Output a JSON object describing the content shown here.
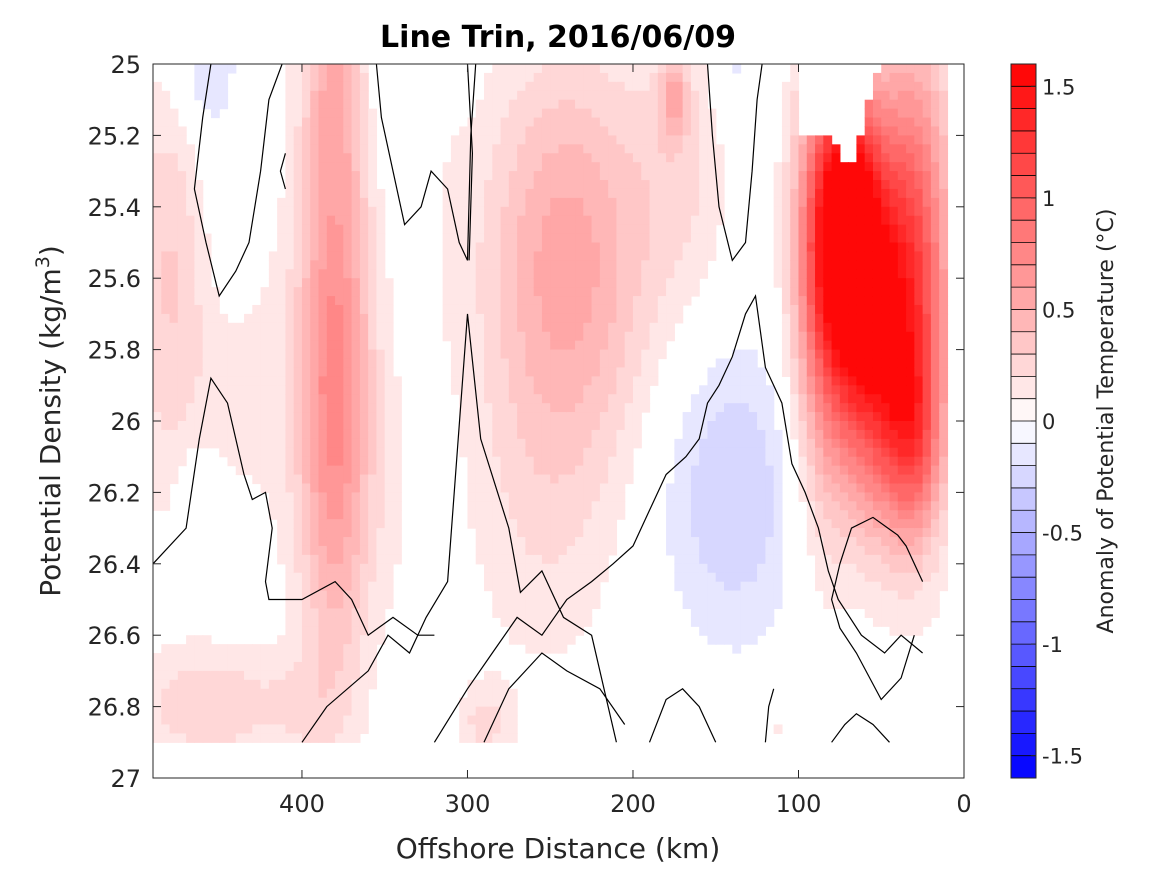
{
  "chart_data": {
    "type": "heatmap",
    "title": "Line Trin, 2016/06/09",
    "xlabel": "Offshore Distance (km)",
    "ylabel": {
      "main": "Potential Density (kg/m",
      "sup": "3",
      "close": ")"
    },
    "xlim": [
      490,
      0
    ],
    "ylim": [
      27,
      25
    ],
    "x_direction": "reversed",
    "y_direction": "reversed",
    "xticks": [
      {
        "value": 400,
        "label": "400"
      },
      {
        "value": 300,
        "label": "300"
      },
      {
        "value": 200,
        "label": "200"
      },
      {
        "value": 100,
        "label": "100"
      },
      {
        "value": 0,
        "label": "0"
      }
    ],
    "yticks": [
      {
        "value": 25,
        "label": "25"
      },
      {
        "value": 25.2,
        "label": "25.2"
      },
      {
        "value": 25.4,
        "label": "25.4"
      },
      {
        "value": 25.6,
        "label": "25.6"
      },
      {
        "value": 25.8,
        "label": "25.8"
      },
      {
        "value": 26,
        "label": "26"
      },
      {
        "value": 26.2,
        "label": "26.2"
      },
      {
        "value": 26.4,
        "label": "26.4"
      },
      {
        "value": 26.6,
        "label": "26.6"
      },
      {
        "value": 26.8,
        "label": "26.8"
      },
      {
        "value": 27,
        "label": "27"
      }
    ],
    "grid": false,
    "colormap": "blue-white-red diverging",
    "color_low": "#0000ff",
    "color_mid": "#ffffff",
    "color_high": "#ff0000",
    "contour_color": "#000000",
    "colorbar": {
      "label": "Anomaly of Potential Temperature (°C)",
      "range": [
        -1.6,
        1.6
      ],
      "levels": 32,
      "ticks": [
        {
          "value": 1.5,
          "label": "1.5"
        },
        {
          "value": 1,
          "label": "1"
        },
        {
          "value": 0.5,
          "label": "0.5"
        },
        {
          "value": 0,
          "label": "0"
        },
        {
          "value": -0.5,
          "label": "-0.5"
        },
        {
          "value": -1,
          "label": "-1"
        },
        {
          "value": -1.5,
          "label": "-1.5"
        }
      ]
    },
    "data_extent": {
      "x": [
        490,
        10
      ],
      "y": [
        25,
        26.9
      ]
    },
    "features": [
      {
        "x": 380,
        "y": 25.9,
        "sx": 16,
        "sy": 0.55,
        "value": 0.75
      },
      {
        "x": 380,
        "y": 25.0,
        "sx": 14,
        "sy": 0.25,
        "value": 0.35
      },
      {
        "x": 240,
        "y": 25.55,
        "sx": 36,
        "sy": 0.4,
        "value": 0.55
      },
      {
        "x": 255,
        "y": 26.3,
        "sx": 35,
        "sy": 0.35,
        "value": 0.15
      },
      {
        "x": 480,
        "y": 25.6,
        "sx": 18,
        "sy": 0.45,
        "value": 0.3
      },
      {
        "x": 430,
        "y": 25.9,
        "sx": 25,
        "sy": 0.35,
        "value": 0.12
      },
      {
        "x": 455,
        "y": 26.8,
        "sx": 35,
        "sy": 0.12,
        "value": 0.28
      },
      {
        "x": 400,
        "y": 26.8,
        "sx": 15,
        "sy": 0.1,
        "value": 0.1
      },
      {
        "x": 290,
        "y": 26.85,
        "sx": 12,
        "sy": 0.08,
        "value": 0.22
      },
      {
        "x": 190,
        "y": 26.85,
        "sx": 25,
        "sy": 0.12,
        "value": 0.08
      },
      {
        "x": 115,
        "y": 26.85,
        "sx": 12,
        "sy": 0.07,
        "value": 0.12
      },
      {
        "x": 170,
        "y": 25.3,
        "sx": 22,
        "sy": 0.3,
        "value": 0.18
      },
      {
        "x": 175,
        "y": 25.1,
        "sx": 6,
        "sy": 0.08,
        "value": 0.4
      },
      {
        "x": 310,
        "y": 25.4,
        "sx": 8,
        "sy": 0.3,
        "value": 0.06
      },
      {
        "x": 345,
        "y": 26.2,
        "sx": 12,
        "sy": 0.3,
        "value": 0.08
      },
      {
        "x": 460,
        "y": 25.0,
        "sx": 14,
        "sy": 0.15,
        "value": -0.22
      },
      {
        "x": 450,
        "y": 25.4,
        "sx": 12,
        "sy": 0.25,
        "value": -0.08
      },
      {
        "x": 345,
        "y": 25.05,
        "sx": 18,
        "sy": 0.18,
        "value": -0.12
      },
      {
        "x": 140,
        "y": 25.0,
        "sx": 8,
        "sy": 0.12,
        "value": -0.16
      },
      {
        "x": 140,
        "y": 26.2,
        "sx": 32,
        "sy": 0.3,
        "value": -0.3
      },
      {
        "x": 465,
        "y": 26.2,
        "sx": 8,
        "sy": 0.1,
        "value": -0.14
      },
      {
        "x": 70,
        "y": 25.45,
        "sx": 16,
        "sy": 0.28,
        "value": 1.65
      },
      {
        "x": 55,
        "y": 25.85,
        "sx": 16,
        "sy": 0.3,
        "value": 0.95
      },
      {
        "x": 30,
        "y": 25.6,
        "sx": 16,
        "sy": 0.45,
        "value": 1.05
      },
      {
        "x": 30,
        "y": 26.05,
        "sx": 12,
        "sy": 0.18,
        "value": 0.5
      },
      {
        "x": 85,
        "y": 25.7,
        "sx": 14,
        "sy": 0.45,
        "value": 0.6
      }
    ],
    "blank_region": [
      [
        100,
        25.0
      ],
      [
        100,
        25.2
      ],
      [
        80,
        25.2
      ],
      [
        70,
        25.3
      ],
      [
        50,
        25.0
      ]
    ],
    "zero_contours": [
      [
        [
          490,
          26.4
        ],
        [
          470,
          26.3
        ],
        [
          462,
          26.05
        ],
        [
          455,
          25.88
        ],
        [
          445,
          25.95
        ],
        [
          435,
          26.15
        ],
        [
          430,
          26.22
        ],
        [
          422,
          26.2
        ],
        [
          418,
          26.3
        ],
        [
          422,
          26.45
        ],
        [
          420,
          26.5
        ],
        [
          400,
          26.5
        ],
        [
          380,
          26.45
        ],
        [
          370,
          26.5
        ],
        [
          360,
          26.6
        ],
        [
          345,
          26.55
        ],
        [
          330,
          26.6
        ],
        [
          320,
          26.6
        ]
      ],
      [
        [
          320,
          26.9
        ],
        [
          300,
          26.75
        ],
        [
          285,
          26.65
        ],
        [
          270,
          26.55
        ],
        [
          255,
          26.6
        ],
        [
          240,
          26.5
        ],
        [
          225,
          26.45
        ],
        [
          212,
          26.4
        ],
        [
          200,
          26.35
        ],
        [
          190,
          26.25
        ],
        [
          180,
          26.15
        ],
        [
          168,
          26.1
        ],
        [
          160,
          26.05
        ],
        [
          155,
          25.95
        ],
        [
          148,
          25.9
        ],
        [
          140,
          25.82
        ],
        [
          132,
          25.7
        ],
        [
          126,
          25.65
        ],
        [
          120,
          25.85
        ],
        [
          110,
          25.95
        ],
        [
          104,
          26.12
        ],
        [
          96,
          26.2
        ],
        [
          88,
          26.3
        ],
        [
          82,
          26.42
        ],
        [
          76,
          26.5
        ],
        [
          62,
          26.6
        ],
        [
          48,
          26.65
        ],
        [
          38,
          26.6
        ],
        [
          25,
          26.65
        ]
      ],
      [
        [
          400,
          26.9
        ],
        [
          385,
          26.8
        ],
        [
          360,
          26.7
        ],
        [
          348,
          26.6
        ],
        [
          335,
          26.65
        ],
        [
          325,
          26.55
        ],
        [
          312,
          26.45
        ],
        [
          300,
          25.7
        ],
        [
          292,
          26.05
        ],
        [
          275,
          26.3
        ],
        [
          268,
          26.48
        ],
        [
          255,
          26.42
        ],
        [
          242,
          26.55
        ],
        [
          225,
          26.6
        ],
        [
          210,
          26.9
        ]
      ],
      [
        [
          290,
          26.9
        ],
        [
          275,
          26.75
        ],
        [
          255,
          26.65
        ],
        [
          240,
          26.7
        ],
        [
          220,
          26.75
        ],
        [
          205,
          26.85
        ]
      ],
      [
        [
          410,
          25.35
        ],
        [
          413,
          25.3
        ],
        [
          410,
          25.25
        ]
      ],
      [
        [
          455,
          25.0
        ],
        [
          460,
          25.15
        ],
        [
          465,
          25.35
        ],
        [
          458,
          25.5
        ],
        [
          450,
          25.65
        ],
        [
          440,
          25.58
        ],
        [
          432,
          25.5
        ],
        [
          425,
          25.3
        ],
        [
          420,
          25.1
        ],
        [
          412,
          25.0
        ]
      ],
      [
        [
          355,
          25.0
        ],
        [
          352,
          25.15
        ],
        [
          345,
          25.3
        ],
        [
          338,
          25.45
        ],
        [
          328,
          25.4
        ],
        [
          322,
          25.3
        ],
        [
          312,
          25.35
        ],
        [
          305,
          25.5
        ],
        [
          300,
          25.55
        ],
        [
          298,
          25.2
        ],
        [
          295,
          25.0
        ]
      ],
      [
        [
          155,
          25.0
        ],
        [
          152,
          25.2
        ],
        [
          148,
          25.4
        ],
        [
          140,
          25.55
        ],
        [
          132,
          25.5
        ],
        [
          128,
          25.3
        ],
        [
          125,
          25.1
        ],
        [
          122,
          25.0
        ]
      ],
      [
        [
          300,
          25.0
        ],
        [
          297,
          25.25
        ],
        [
          299,
          25.55
        ]
      ],
      [
        [
          30,
          26.6
        ],
        [
          38,
          26.72
        ],
        [
          50,
          26.78
        ],
        [
          65,
          26.65
        ],
        [
          75,
          26.58
        ],
        [
          80,
          26.5
        ],
        [
          75,
          26.4
        ],
        [
          68,
          26.3
        ],
        [
          55,
          26.27
        ],
        [
          40,
          26.32
        ],
        [
          35,
          26.35
        ],
        [
          25,
          26.45
        ]
      ],
      [
        [
          80,
          26.9
        ],
        [
          72,
          26.85
        ],
        [
          65,
          26.82
        ],
        [
          55,
          26.85
        ],
        [
          45,
          26.9
        ]
      ],
      [
        [
          190,
          26.9
        ],
        [
          180,
          26.78
        ],
        [
          170,
          26.75
        ],
        [
          160,
          26.8
        ],
        [
          150,
          26.9
        ]
      ],
      [
        [
          120,
          26.9
        ],
        [
          118,
          26.8
        ],
        [
          115,
          26.75
        ]
      ]
    ]
  }
}
